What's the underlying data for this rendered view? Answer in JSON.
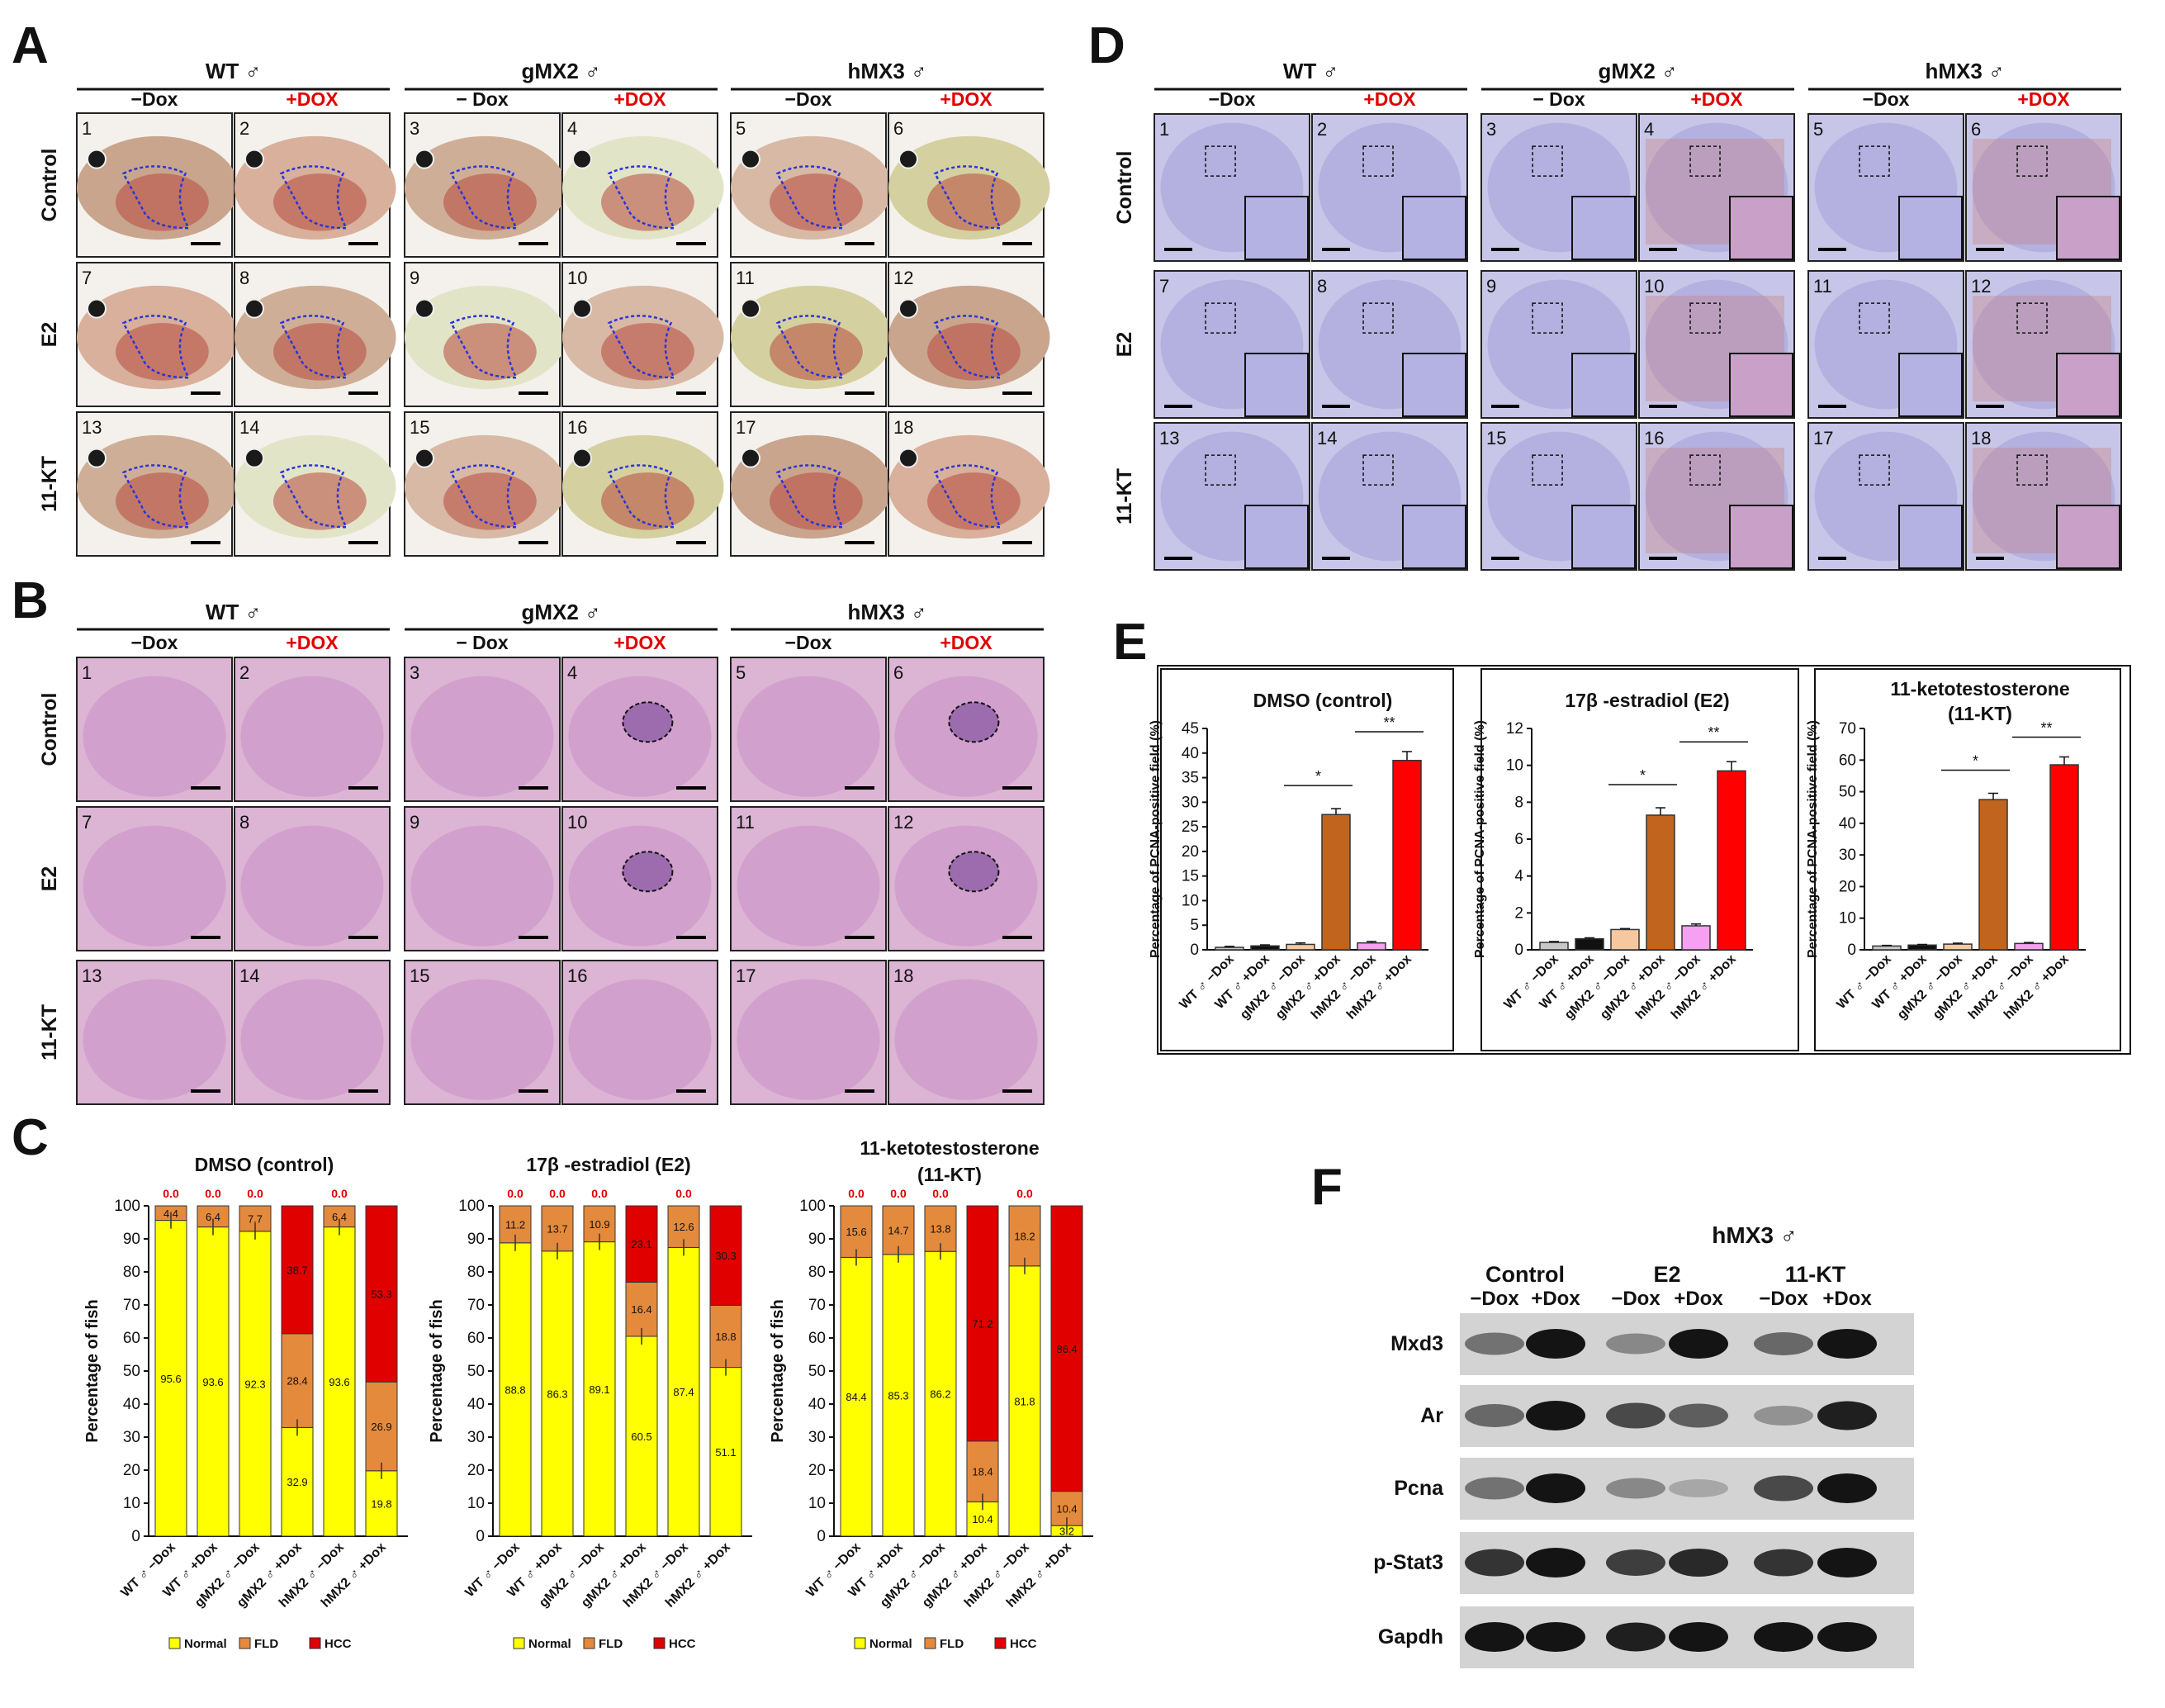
{
  "figure": {
    "colors": {
      "red_label": "#e00000",
      "normal": "#ffff00",
      "fld": "#e48a3c",
      "hcc": "#e00000",
      "dot": "#2b35d8",
      "he_bg": "#dcb4d4",
      "ihc_bg": "#c8c6e8"
    },
    "panel_letters": [
      "A",
      "B",
      "C",
      "D",
      "E",
      "F"
    ],
    "genotype_headers": [
      "WT ♂",
      "gMX2 ♂",
      "hMX3 ♂"
    ],
    "dox_headers": [
      [
        "−Dox",
        "+DOX"
      ],
      [
        "− Dox",
        "+DOX"
      ],
      [
        "−Dox",
        "+DOX"
      ]
    ],
    "row_labels": [
      "Control",
      "E2",
      "11-KT"
    ],
    "panel_numbers": [
      "1",
      "2",
      "3",
      "4",
      "5",
      "6",
      "7",
      "8",
      "9",
      "10",
      "11",
      "12",
      "13",
      "14",
      "15",
      "16",
      "17",
      "18"
    ],
    "panel_c": {
      "legend": [
        "Normal",
        "FLD",
        "HCC"
      ],
      "x_labels": [
        "WT ♂ −Dox",
        "WT ♂ +Dox",
        "gMX2 ♂ −Dox",
        "gMX2 ♂ +Dox",
        "hMX2 ♂ −Dox",
        "hMX2 ♂ +Dox"
      ]
    },
    "panel_e": {
      "x_labels": [
        "WT ♂ −Dox",
        "WT ♂ +Dox",
        "gMX2 ♂ −Dox",
        "gMX2 ♂ +Dox",
        "hMX2 ♂ −Dox",
        "hMX2 ♂ +Dox"
      ],
      "bar_colors": [
        "#c8c8c8",
        "#111111",
        "#f5c8a0",
        "#c0641e",
        "#f5a0f0",
        "#ff0000"
      ]
    },
    "panel_f": {
      "title": "hMX3 ♂",
      "groups": [
        "Control",
        "E2",
        "11-KT"
      ],
      "lanes": [
        "−Dox",
        "+Dox",
        "−Dox",
        "+Dox",
        "−Dox",
        "+Dox"
      ],
      "bands": [
        "Mxd3",
        "Ar",
        "Pcna",
        "p-Stat3",
        "Gapdh"
      ],
      "intensity": [
        [
          0.55,
          1.0,
          0.45,
          1.0,
          0.6,
          1.0
        ],
        [
          0.6,
          1.0,
          0.75,
          0.65,
          0.4,
          0.95
        ],
        [
          0.55,
          1.0,
          0.45,
          0.3,
          0.75,
          1.0
        ],
        [
          0.85,
          1.0,
          0.8,
          0.9,
          0.85,
          1.0
        ],
        [
          1.0,
          1.0,
          0.95,
          1.0,
          1.0,
          1.0
        ]
      ]
    }
  },
  "chart_data": [
    {
      "type": "bar",
      "stacked": true,
      "title": "DMSO (control)",
      "ylabel": "Percentage of fish",
      "ylim": [
        0,
        100
      ],
      "categories": [
        "WT ♂ −Dox",
        "WT ♂ +Dox",
        "gMX2 ♂ −Dox",
        "gMX2 ♂ +Dox",
        "hMX2 ♂ −Dox",
        "hMX2 ♂ +Dox"
      ],
      "series": [
        {
          "name": "Normal",
          "values": [
            95.6,
            93.6,
            92.3,
            32.9,
            93.6,
            19.8
          ]
        },
        {
          "name": "FLD",
          "values": [
            4.4,
            6.4,
            7.7,
            28.4,
            6.4,
            26.9
          ]
        },
        {
          "name": "HCC",
          "values": [
            0.0,
            0.0,
            0.0,
            38.7,
            0.0,
            53.3
          ]
        }
      ],
      "labels": {
        "normal": [
          "95.6",
          "93.6",
          "92.3",
          "32.9",
          "93.6",
          "19.8"
        ],
        "fld": [
          "4.4",
          "6.4",
          "7.7",
          "28.4",
          "6.4",
          "26.9"
        ],
        "hcc": [
          "0.0",
          "0.0",
          "0.0",
          "38.7",
          "0.0",
          "53.3"
        ]
      }
    },
    {
      "type": "bar",
      "stacked": true,
      "title": "17β -estradiol (E2)",
      "ylabel": "Percentage of fish",
      "ylim": [
        0,
        100
      ],
      "categories": [
        "WT ♂ −Dox",
        "WT ♂ +Dox",
        "gMX2 ♂ −Dox",
        "gMX2 ♂ +Dox",
        "hMX2 ♂ −Dox",
        "hMX2 ♂ +Dox"
      ],
      "series": [
        {
          "name": "Normal",
          "values": [
            88.8,
            86.3,
            89.1,
            60.5,
            87.4,
            51.1
          ]
        },
        {
          "name": "FLD",
          "values": [
            11.2,
            13.7,
            10.9,
            16.4,
            12.6,
            18.8
          ]
        },
        {
          "name": "HCC",
          "values": [
            0.0,
            0.0,
            0.0,
            23.1,
            0.0,
            30.3
          ]
        }
      ],
      "labels": {
        "normal": [
          "88.8",
          "86.3",
          "89.1",
          "60.5",
          "87.4",
          "51.1"
        ],
        "fld": [
          "11.2",
          "13.7",
          "10.9",
          "16.4",
          "12.6",
          "18.8"
        ],
        "hcc": [
          "0.0",
          "0.0",
          "0.0",
          "23.1",
          "0.0",
          "30.3"
        ]
      }
    },
    {
      "type": "bar",
      "stacked": true,
      "title": "11-ketotestosterone",
      "subtitle": "(11-KT)",
      "ylabel": "Percentage of fish",
      "ylim": [
        0,
        100
      ],
      "categories": [
        "WT ♂ −Dox",
        "WT ♂ +Dox",
        "gMX2 ♂ −Dox",
        "gMX2 ♂ +Dox",
        "hMX2 ♂ −Dox",
        "hMX2 ♂ +Dox"
      ],
      "series": [
        {
          "name": "Normal",
          "values": [
            84.4,
            85.3,
            86.2,
            10.4,
            81.8,
            3.2
          ]
        },
        {
          "name": "FLD",
          "values": [
            15.6,
            14.7,
            13.8,
            18.4,
            18.2,
            10.4
          ]
        },
        {
          "name": "HCC",
          "values": [
            0.0,
            0.0,
            0.0,
            71.2,
            0.0,
            86.4
          ]
        }
      ],
      "labels": {
        "normal": [
          "84.4",
          "85.3",
          "86.2",
          "10.4",
          "81.8",
          "3.2"
        ],
        "fld": [
          "15.6",
          "14.7",
          "13.8",
          "18.4",
          "18.2",
          "10.4"
        ],
        "hcc": [
          "0.0",
          "0.0",
          "0.0",
          "71.2",
          "0.0",
          "86.4"
        ]
      }
    },
    {
      "type": "bar",
      "title": "DMSO (control)",
      "ylabel": "Percentage of PCNA-positive field (%)",
      "ylim": [
        0,
        45
      ],
      "yticks": [
        0,
        5,
        10,
        15,
        20,
        25,
        30,
        35,
        40,
        45
      ],
      "categories": [
        "WT ♂ −Dox",
        "WT ♂ +Dox",
        "gMX2 ♂ −Dox",
        "gMX2 ♂ +Dox",
        "hMX2 ♂ −Dox",
        "hMX2 ♂ +Dox"
      ],
      "values": [
        0.5,
        0.8,
        1.1,
        27.5,
        1.4,
        38.5
      ],
      "errors": [
        0.2,
        0.2,
        0.3,
        1.2,
        0.3,
        1.8
      ],
      "significance": [
        "*",
        "**"
      ]
    },
    {
      "type": "bar",
      "title": "17β -estradiol (E2)",
      "ylabel": "Percentage of PCNA-positive field (%)",
      "ylim": [
        0,
        12
      ],
      "yticks": [
        0,
        2,
        4,
        6,
        8,
        10,
        12
      ],
      "categories": [
        "WT ♂ −Dox",
        "WT ♂ +Dox",
        "gMX2 ♂ −Dox",
        "gMX2 ♂ +Dox",
        "hMX2 ♂ −Dox",
        "hMX2 ♂ +Dox"
      ],
      "values": [
        0.4,
        0.6,
        1.1,
        7.3,
        1.3,
        9.7
      ],
      "errors": [
        0.05,
        0.05,
        0.05,
        0.4,
        0.1,
        0.5
      ],
      "significance": [
        "*",
        "**"
      ]
    },
    {
      "type": "bar",
      "title": "11-ketotestosterone",
      "subtitle": "(11-KT)",
      "ylabel": "Percentage of PCNA-positive field (%)",
      "ylim": [
        0,
        70
      ],
      "yticks": [
        0,
        10,
        20,
        30,
        40,
        50,
        60,
        70
      ],
      "categories": [
        "WT ♂ −Dox",
        "WT ♂ +Dox",
        "gMX2 ♂ −Dox",
        "gMX2 ♂ +Dox",
        "hMX2 ♂ −Dox",
        "hMX2 ♂ +Dox"
      ],
      "values": [
        1.2,
        1.5,
        1.8,
        47.5,
        2.0,
        58.5
      ],
      "errors": [
        0.2,
        0.2,
        0.3,
        2.0,
        0.3,
        2.5
      ],
      "significance": [
        "*",
        "**"
      ]
    }
  ]
}
